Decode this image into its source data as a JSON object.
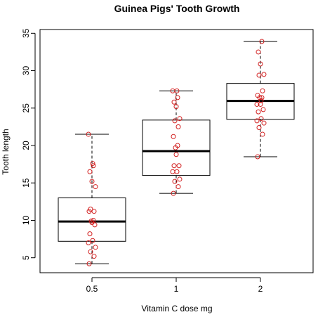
{
  "chart_data": {
    "type": "boxplot",
    "title": "Guinea Pigs' Tooth Growth",
    "xlabel": "Vitamin C dose mg",
    "ylabel": "Tooth length",
    "categories": [
      "0.5",
      "1",
      "2"
    ],
    "yticks": [
      5,
      10,
      15,
      20,
      25,
      30,
      35
    ],
    "ylim": [
      3,
      35.5
    ],
    "grid": false,
    "colors": {
      "box": "#000000",
      "points": "#d22020"
    },
    "boxes": [
      {
        "category": "0.5",
        "min": 4.2,
        "q1": 7.2,
        "median": 9.85,
        "q3": 13.0,
        "max": 21.5
      },
      {
        "category": "1",
        "min": 13.6,
        "q1": 16.0,
        "median": 19.25,
        "q3": 23.4,
        "max": 27.3
      },
      {
        "category": "2",
        "min": 18.5,
        "q1": 23.5,
        "median": 25.95,
        "q3": 28.3,
        "max": 33.9
      }
    ],
    "points": [
      [
        4.2,
        5.2,
        5.8,
        6.4,
        7.0,
        7.3,
        8.2,
        9.4,
        9.7,
        9.9,
        10.0,
        11.2,
        11.2,
        11.5,
        14.5,
        15.2,
        16.5,
        17.3,
        17.6,
        21.5
      ],
      [
        13.6,
        14.5,
        15.2,
        15.5,
        16.5,
        16.5,
        17.3,
        17.3,
        18.8,
        19.7,
        20.0,
        21.2,
        22.5,
        23.3,
        23.6,
        25.2,
        25.8,
        26.4,
        27.3,
        27.3
      ],
      [
        18.5,
        21.5,
        22.4,
        23.0,
        23.3,
        23.6,
        24.5,
        24.8,
        25.5,
        26.4,
        26.4,
        26.7,
        27.3,
        29.4,
        29.5,
        30.9,
        32.5,
        33.9,
        26.0,
        25.5
      ]
    ]
  }
}
